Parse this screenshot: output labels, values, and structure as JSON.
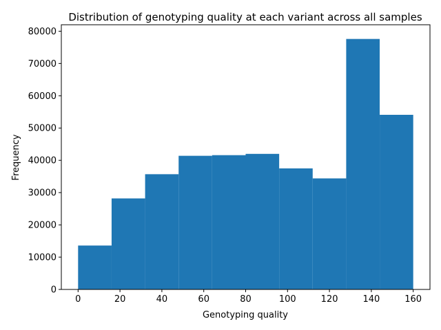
{
  "chart_data": {
    "type": "bar",
    "title": "Distribution of genotyping quality at each variant across all samples",
    "xlabel": "Genotyping quality",
    "ylabel": "Frequency",
    "xlim": [
      -8,
      168
    ],
    "ylim": [
      0,
      82000
    ],
    "xticks": [
      0,
      20,
      40,
      60,
      80,
      100,
      120,
      140,
      160
    ],
    "yticks": [
      0,
      10000,
      20000,
      30000,
      40000,
      50000,
      60000,
      70000,
      80000
    ],
    "bin_edges": [
      0,
      16,
      32,
      48,
      64,
      80,
      96,
      112,
      128,
      144,
      160
    ],
    "values": [
      13600,
      28200,
      35700,
      41400,
      41600,
      42000,
      37500,
      34400,
      77600,
      54100
    ],
    "bar_color": "#1f77b4",
    "grid": false,
    "legend": "none"
  }
}
